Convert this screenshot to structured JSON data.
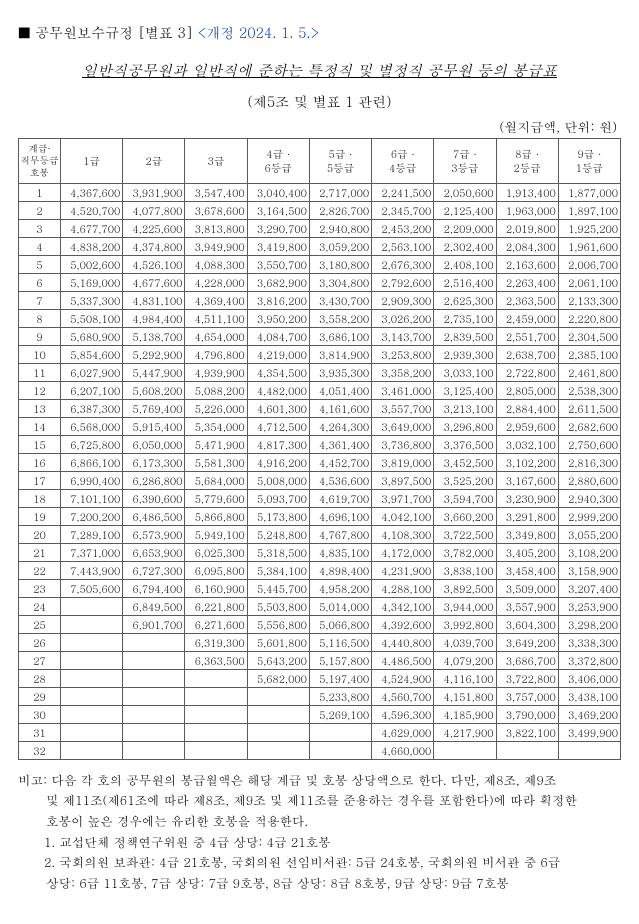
{
  "header": {
    "label": "■ 공무원보수규정 [별표 3]",
    "revision": "<개정 2024. 1. 5.>"
  },
  "title": "일반직공무원과 일반직에 준하는 특정직 및 별정직 공무원 등의 봉급표",
  "subtitle": "(제5조 및 별표 1 관련)",
  "unitNote": "(월지급액, 단위: 원)",
  "table": {
    "rowHeaderLabel": "계급·\n직무등급\n호봉",
    "columns": [
      "1급",
      "2급",
      "3급",
      "4급 ·\n6등급",
      "5급 ·\n5등급",
      "6급 ·\n4등급",
      "7급 ·\n3등급",
      "8급 ·\n2등급",
      "9급 ·\n1등급"
    ],
    "rows": [
      {
        "n": "1",
        "v": [
          "4,367,600",
          "3,931,900",
          "3,547,400",
          "3,040,400",
          "2,717,000",
          "2,241,500",
          "2,050,600",
          "1,913,400",
          "1,877,000"
        ]
      },
      {
        "n": "2",
        "v": [
          "4,520,700",
          "4,077,800",
          "3,678,600",
          "3,164,500",
          "2,826,700",
          "2,345,700",
          "2,125,400",
          "1,963,000",
          "1,897,100"
        ]
      },
      {
        "n": "3",
        "v": [
          "4,677,700",
          "4,225,600",
          "3,813,800",
          "3,290,700",
          "2,940,800",
          "2,453,200",
          "2,209,000",
          "2,019,800",
          "1,925,200"
        ]
      },
      {
        "n": "4",
        "v": [
          "4,838,200",
          "4,374,800",
          "3,949,900",
          "3,419,800",
          "3,059,200",
          "2,563,100",
          "2,302,400",
          "2,084,300",
          "1,961,600"
        ]
      },
      {
        "n": "5",
        "v": [
          "5,002,600",
          "4,526,100",
          "4,088,300",
          "3,550,700",
          "3,180,800",
          "2,676,300",
          "2,408,100",
          "2,163,600",
          "2,006,700"
        ]
      },
      {
        "n": "6",
        "v": [
          "5,169,000",
          "4,677,600",
          "4,228,000",
          "3,682,900",
          "3,304,800",
          "2,792,600",
          "2,516,400",
          "2,263,400",
          "2,061,100"
        ]
      },
      {
        "n": "7",
        "v": [
          "5,337,300",
          "4,831,100",
          "4,369,400",
          "3,816,200",
          "3,430,700",
          "2,909,300",
          "2,625,300",
          "2,363,500",
          "2,133,300"
        ]
      },
      {
        "n": "8",
        "v": [
          "5,508,100",
          "4,984,400",
          "4,511,100",
          "3,950,200",
          "3,558,200",
          "3,026,200",
          "2,735,100",
          "2,459,000",
          "2,220,800"
        ]
      },
      {
        "n": "9",
        "v": [
          "5,680,900",
          "5,138,700",
          "4,654,000",
          "4,084,700",
          "3,686,100",
          "3,143,700",
          "2,839,500",
          "2,551,700",
          "2,304,500"
        ]
      },
      {
        "n": "10",
        "v": [
          "5,854,600",
          "5,292,900",
          "4,796,800",
          "4,219,000",
          "3,814,900",
          "3,253,800",
          "2,939,300",
          "2,638,700",
          "2,385,100"
        ]
      },
      {
        "n": "11",
        "v": [
          "6,027,900",
          "5,447,900",
          "4,939,900",
          "4,354,500",
          "3,935,300",
          "3,358,200",
          "3,033,100",
          "2,722,800",
          "2,461,800"
        ]
      },
      {
        "n": "12",
        "v": [
          "6,207,100",
          "5,608,200",
          "5,088,200",
          "4,482,000",
          "4,051,400",
          "3,461,000",
          "3,125,400",
          "2,805,000",
          "2,538,300"
        ]
      },
      {
        "n": "13",
        "v": [
          "6,387,300",
          "5,769,400",
          "5,226,000",
          "4,601,300",
          "4,161,600",
          "3,557,700",
          "3,213,100",
          "2,884,400",
          "2,611,500"
        ]
      },
      {
        "n": "14",
        "v": [
          "6,568,000",
          "5,915,400",
          "5,354,000",
          "4,712,500",
          "4,264,300",
          "3,649,000",
          "3,296,800",
          "2,959,600",
          "2,682,600"
        ]
      },
      {
        "n": "15",
        "v": [
          "6,725,800",
          "6,050,000",
          "5,471,900",
          "4,817,300",
          "4,361,400",
          "3,736,800",
          "3,376,500",
          "3,032,100",
          "2,750,600"
        ]
      },
      {
        "n": "16",
        "v": [
          "6,866,100",
          "6,173,300",
          "5,581,300",
          "4,916,200",
          "4,452,700",
          "3,819,000",
          "3,452,500",
          "3,102,200",
          "2,816,300"
        ]
      },
      {
        "n": "17",
        "v": [
          "6,990,400",
          "6,286,800",
          "5,684,000",
          "5,008,000",
          "4,536,600",
          "3,897,500",
          "3,525,200",
          "3,167,600",
          "2,880,600"
        ]
      },
      {
        "n": "18",
        "v": [
          "7,101,100",
          "6,390,600",
          "5,779,600",
          "5,093,700",
          "4,619,700",
          "3,971,700",
          "3,594,700",
          "3,230,900",
          "2,940,300"
        ]
      },
      {
        "n": "19",
        "v": [
          "7,200,200",
          "6,486,500",
          "5,866,800",
          "5,173,800",
          "4,696,100",
          "4,042,100",
          "3,660,200",
          "3,291,800",
          "2,999,200"
        ]
      },
      {
        "n": "20",
        "v": [
          "7,289,100",
          "6,573,900",
          "5,949,100",
          "5,248,800",
          "4,767,800",
          "4,108,300",
          "3,722,500",
          "3,349,800",
          "3,055,200"
        ]
      },
      {
        "n": "21",
        "v": [
          "7,371,000",
          "6,653,900",
          "6,025,300",
          "5,318,500",
          "4,835,100",
          "4,172,000",
          "3,782,000",
          "3,405,200",
          "3,108,200"
        ]
      },
      {
        "n": "22",
        "v": [
          "7,443,900",
          "6,727,300",
          "6,095,800",
          "5,384,100",
          "4,898,400",
          "4,231,900",
          "3,838,100",
          "3,458,400",
          "3,158,900"
        ]
      },
      {
        "n": "23",
        "v": [
          "7,505,600",
          "6,794,400",
          "6,160,900",
          "5,445,700",
          "4,958,200",
          "4,288,100",
          "3,892,500",
          "3,509,000",
          "3,207,400"
        ]
      },
      {
        "n": "24",
        "v": [
          "",
          "6,849,500",
          "6,221,800",
          "5,503,800",
          "5,014,000",
          "4,342,100",
          "3,944,000",
          "3,557,900",
          "3,253,900"
        ]
      },
      {
        "n": "25",
        "v": [
          "",
          "6,901,700",
          "6,271,600",
          "5,556,800",
          "5,066,800",
          "4,392,600",
          "3,992,800",
          "3,604,300",
          "3,298,200"
        ]
      },
      {
        "n": "26",
        "v": [
          "",
          "",
          "6,319,300",
          "5,601,800",
          "5,116,500",
          "4,440,800",
          "4,039,700",
          "3,649,200",
          "3,338,300"
        ]
      },
      {
        "n": "27",
        "v": [
          "",
          "",
          "6,363,500",
          "5,643,200",
          "5,157,800",
          "4,486,500",
          "4,079,200",
          "3,686,700",
          "3,372,800"
        ]
      },
      {
        "n": "28",
        "v": [
          "",
          "",
          "",
          "5,682,000",
          "5,197,400",
          "4,524,900",
          "4,116,100",
          "3,722,800",
          "3,406,000"
        ]
      },
      {
        "n": "29",
        "v": [
          "",
          "",
          "",
          "",
          "5,233,800",
          "4,560,700",
          "4,151,800",
          "3,757,000",
          "3,438,100"
        ]
      },
      {
        "n": "30",
        "v": [
          "",
          "",
          "",
          "",
          "5,269,100",
          "4,596,300",
          "4,185,900",
          "3,790,000",
          "3,469,200"
        ]
      },
      {
        "n": "31",
        "v": [
          "",
          "",
          "",
          "",
          "",
          "4,629,000",
          "4,217,900",
          "3,822,100",
          "3,499,900"
        ]
      },
      {
        "n": "32",
        "v": [
          "",
          "",
          "",
          "",
          "",
          "4,660,000",
          "",
          "",
          ""
        ]
      }
    ]
  },
  "footnotes": {
    "intro": "비고: 다음 각 호의 공무원의 봉급월액은 해당 계급 및 호봉 상당액으로 한다. 다만, 제8조, 제9조",
    "introCont1": "및 제11조(제61조에 따라 제8조, 제9조 및 제11조를 준용하는 경우를 포함한다)에 따라 획정한",
    "introCont2": "호봉이 높은 경우에는 유리한 호봉을 적용한다.",
    "item1": "1. 교섭단체 정책연구위원 중 4급 상당: 4급 21호봉",
    "item2a": "2. 국회의원 보좌관: 4급 21호봉, 국회의원 선임비서관: 5급 24호봉, 국회의원 비서관 중 6급",
    "item2b": "상당: 6급 11호봉, 7급 상당: 7급 9호봉, 8급 상당: 8급 8호봉, 9급 상당: 9급 7호봉"
  }
}
